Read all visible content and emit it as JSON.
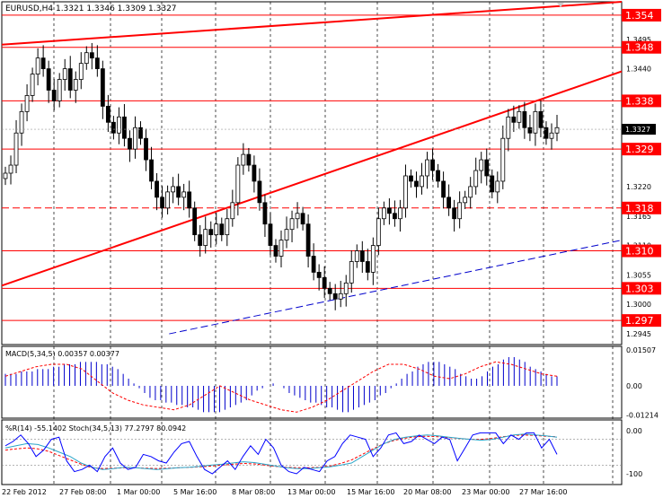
{
  "colors": {
    "background": "#ffffff",
    "grid": "#000000",
    "level_line": "#ff0000",
    "level_label_bg": "#ff0000",
    "level_label_text": "#ffffff",
    "candle": "#000000",
    "trend_line": "#ff0000",
    "lower_trend": "#0000cc",
    "macd_hist": "#0000cc",
    "macd_signal": "#ff0000",
    "wpr_line": "#0000ff",
    "stoch_main": "#2aa6c9",
    "stoch_signal": "#ff0000",
    "price_marker_bg": "#000000",
    "price_marker_text": "#ffffff"
  },
  "chart_data": [
    {
      "type": "line",
      "title": "EURUSD,H4  1.3321 1.3346 1.3309 1.3327",
      "chart_kind": "candlestick",
      "x_tick_labels": [
        "22 Feb 2012",
        "27 Feb 08:00",
        "1 Mar 00:00",
        "5 Mar 16:00",
        "8 Mar 08:00",
        "13 Mar 00:00",
        "15 Mar 16:00",
        "20 Mar 08:00",
        "23 Mar 00:00",
        "27 Mar 16:00"
      ],
      "y_tick_labels": [
        "1.3495",
        "1.3440",
        "1.3385",
        "1.3327",
        "1.3220",
        "1.3165",
        "1.3110",
        "1.3055",
        "1.3000",
        "1.2945"
      ],
      "ylim": [
        1.2925,
        1.3565
      ],
      "current_price": "1.3327",
      "levels": [
        {
          "label": "1.354",
          "value": 1.354,
          "style": "solid"
        },
        {
          "label": "1.348",
          "value": 1.348,
          "style": "solid"
        },
        {
          "label": "1.338",
          "value": 1.338,
          "style": "solid"
        },
        {
          "label": "1.329",
          "value": 1.329,
          "style": "solid"
        },
        {
          "label": "1.318",
          "value": 1.318,
          "style": "dashed"
        },
        {
          "label": "1.310",
          "value": 1.31,
          "style": "solid"
        },
        {
          "label": "1.303",
          "value": 1.303,
          "style": "solid"
        },
        {
          "label": "1.297",
          "value": 1.297,
          "style": "solid"
        }
      ],
      "close_path": [
        1.3245,
        1.326,
        1.332,
        1.336,
        1.339,
        1.343,
        1.346,
        1.344,
        1.34,
        1.338,
        1.342,
        1.344,
        1.34,
        1.342,
        1.345,
        1.347,
        1.346,
        1.344,
        1.337,
        1.334,
        1.332,
        1.335,
        1.331,
        1.329,
        1.333,
        1.331,
        1.327,
        1.323,
        1.32,
        1.318,
        1.321,
        1.322,
        1.32,
        1.321,
        1.318,
        1.313,
        1.311,
        1.314,
        1.313,
        1.315,
        1.313,
        1.316,
        1.319,
        1.326,
        1.328,
        1.326,
        1.323,
        1.319,
        1.315,
        1.311,
        1.309,
        1.312,
        1.314,
        1.316,
        1.317,
        1.315,
        1.309,
        1.306,
        1.305,
        1.303,
        1.302,
        1.301,
        1.302,
        1.304,
        1.308,
        1.31,
        1.308,
        1.306,
        1.311,
        1.316,
        1.318,
        1.317,
        1.316,
        1.318,
        1.324,
        1.323,
        1.322,
        1.324,
        1.327,
        1.325,
        1.323,
        1.32,
        1.318,
        1.316,
        1.319,
        1.32,
        1.322,
        1.325,
        1.327,
        1.324,
        1.321,
        1.323,
        1.331,
        1.335,
        1.334,
        1.336,
        1.333,
        1.332,
        1.336,
        1.333,
        1.331,
        1.332,
        1.333
      ],
      "trend_lines": [
        {
          "name": "upper",
          "from": [
            0,
            1.3485
          ],
          "to": [
            1,
            1.3565
          ]
        },
        {
          "name": "channel",
          "from": [
            0,
            1.3035
          ],
          "to": [
            1,
            1.3435
          ]
        },
        {
          "name": "lower",
          "from": [
            0.27,
            1.2945
          ],
          "to": [
            1,
            1.312
          ]
        }
      ]
    },
    {
      "type": "bar",
      "title": "MACD(5,34,5) 0.00357 0.00377",
      "y_tick_labels": [
        "0.01507",
        "0.00",
        "-0.01214"
      ],
      "ylim": [
        -0.0135,
        0.0165
      ],
      "histogram": [
        0.005,
        0.005,
        0.005,
        0.006,
        0.006,
        0.006,
        0.007,
        0.007,
        0.007,
        0.008,
        0.008,
        0.009,
        0.009,
        0.009,
        0.01,
        0.01,
        0.01,
        0.01,
        0.009,
        0.009,
        0.008,
        0.007,
        0.005,
        0.003,
        0.001,
        -0.001,
        -0.003,
        -0.005,
        -0.006,
        -0.006,
        -0.007,
        -0.007,
        -0.008,
        -0.008,
        -0.009,
        -0.009,
        -0.01,
        -0.011,
        -0.011,
        -0.011,
        -0.011,
        -0.01,
        -0.009,
        -0.008,
        -0.007,
        -0.006,
        -0.004,
        -0.002,
        -0.001,
        0.0,
        0.001,
        0.0,
        -0.001,
        -0.003,
        -0.004,
        -0.005,
        -0.006,
        -0.007,
        -0.007,
        -0.008,
        -0.009,
        -0.009,
        -0.01,
        -0.011,
        -0.011,
        -0.01,
        -0.009,
        -0.008,
        -0.007,
        -0.006,
        -0.004,
        -0.003,
        -0.001,
        0.001,
        0.003,
        0.005,
        0.006,
        0.008,
        0.009,
        0.01,
        0.01,
        0.01,
        0.009,
        0.008,
        0.007,
        0.005,
        0.004,
        0.003,
        0.003,
        0.004,
        0.006,
        0.008,
        0.009,
        0.011,
        0.012,
        0.012,
        0.011,
        0.01,
        0.008,
        0.007,
        0.006,
        0.005,
        0.004,
        0.004
      ],
      "signal": [
        0.004,
        0.006,
        0.008,
        0.009,
        0.009,
        0.007,
        0.002,
        -0.003,
        -0.006,
        -0.008,
        -0.009,
        -0.01,
        -0.008,
        -0.004,
        0.0,
        -0.003,
        -0.006,
        -0.008,
        -0.01,
        -0.011,
        -0.009,
        -0.006,
        -0.002,
        0.002,
        0.006,
        0.009,
        0.009,
        0.007,
        0.004,
        0.003,
        0.005,
        0.008,
        0.01,
        0.009,
        0.007,
        0.005,
        0.004
      ]
    },
    {
      "type": "line",
      "title": "%R(14) -55.1402  Stoch(34,5,13) 77.2797 80.0942",
      "y_tick_labels": [
        "0.00",
        "-100"
      ],
      "ylim": [
        -100,
        0
      ],
      "wpr": [
        -35,
        -25,
        -10,
        -30,
        -60,
        -45,
        -20,
        -15,
        -70,
        -95,
        -90,
        -80,
        -95,
        -60,
        -40,
        -75,
        -90,
        -85,
        -55,
        -60,
        -70,
        -75,
        -50,
        -30,
        -25,
        -60,
        -90,
        -100,
        -85,
        -70,
        -90,
        -60,
        -35,
        -55,
        -20,
        -40,
        -80,
        -95,
        -100,
        -85,
        -90,
        -95,
        -70,
        -60,
        -30,
        -10,
        -15,
        -20,
        -60,
        -40,
        -10,
        -5,
        -30,
        -25,
        -10,
        -20,
        -30,
        -15,
        -20,
        -70,
        -40,
        -10,
        -5,
        -5,
        -5,
        -30,
        -10,
        -20,
        -5,
        -5,
        -40,
        -20,
        -55
      ],
      "stoch_main": [
        -40,
        -35,
        -30,
        -32,
        -40,
        -50,
        -60,
        -75,
        -85,
        -90,
        -88,
        -85,
        -86,
        -88,
        -90,
        -88,
        -86,
        -85,
        -83,
        -80,
        -78,
        -75,
        -72,
        -74,
        -78,
        -82,
        -86,
        -88,
        -88,
        -86,
        -84,
        -80,
        -75,
        -60,
        -45,
        -30,
        -20,
        -15,
        -12,
        -10,
        -12,
        -15,
        -18,
        -20,
        -22,
        -20,
        -15,
        -10,
        -8,
        -10,
        -12,
        -15
      ],
      "stoch_signal": [
        -45,
        -42,
        -40,
        -42,
        -48,
        -58,
        -68,
        -78,
        -86,
        -88,
        -87,
        -86,
        -86,
        -87,
        -88,
        -87,
        -86,
        -85,
        -84,
        -82,
        -80,
        -78,
        -76,
        -77,
        -80,
        -83,
        -85,
        -86,
        -86,
        -85,
        -82,
        -76,
        -68,
        -55,
        -42,
        -30,
        -22,
        -17,
        -14,
        -13,
        -14,
        -16,
        -18,
        -20,
        -20,
        -18,
        -14,
        -11,
        -10,
        -11,
        -13,
        -14
      ]
    }
  ]
}
